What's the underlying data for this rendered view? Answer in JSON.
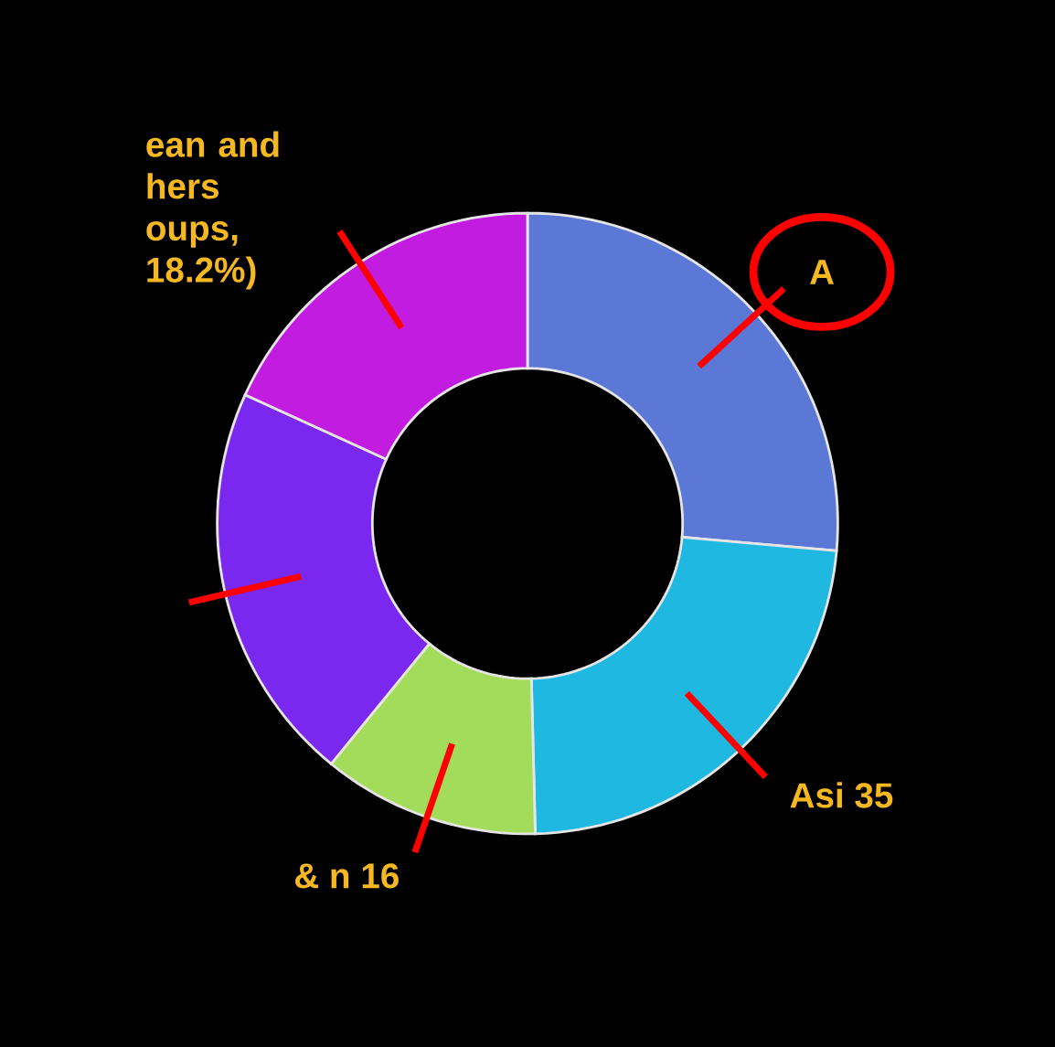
{
  "chart_data": {
    "type": "donut",
    "categories": [
      "A",
      "Asi 35",
      "& n 16",
      null,
      "ean and hers oups, 18.2%)"
    ],
    "values": [
      26.4,
      23.2,
      11.3,
      20.9,
      18.2
    ],
    "colors": [
      "#5b78d6",
      "#1fb8e0",
      "#a3dc5a",
      "#7a28f0",
      "#c21ce0"
    ]
  }
}
